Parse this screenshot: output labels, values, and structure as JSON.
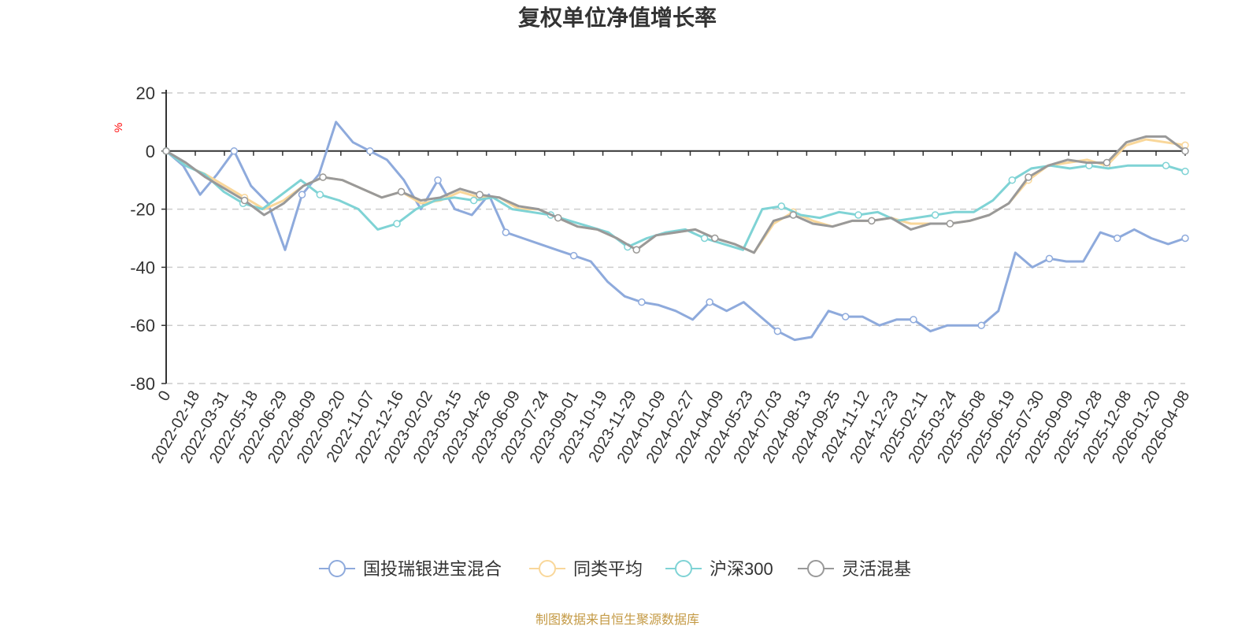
{
  "chart_data": {
    "type": "line",
    "title": "复权单位净值增长率",
    "ylabel": "%",
    "ylim": [
      -80,
      20
    ],
    "yticks": [
      20,
      0,
      -20,
      -40,
      -60,
      -80
    ],
    "x_labels": [
      "0",
      "2022-02-18",
      "2022-03-31",
      "2022-05-18",
      "2022-06-29",
      "2022-08-09",
      "2022-09-20",
      "2022-11-07",
      "2022-12-16",
      "2023-02-02",
      "2023-03-15",
      "2023-04-26",
      "2023-06-09",
      "2023-07-24",
      "2023-09-01",
      "2023-10-19",
      "2023-11-29",
      "2024-01-09",
      "2024-02-27",
      "2024-04-09",
      "2024-05-23",
      "2024-07-03",
      "2024-08-13",
      "2024-09-25",
      "2024-11-12",
      "2024-12-23",
      "2025-02-11",
      "2025-03-24",
      "2025-05-08",
      "2025-06-19",
      "2025-07-30",
      "2025-09-09",
      "2025-10-28",
      "2025-12-08",
      "2026-01-20",
      "2026-04-08"
    ],
    "grid": true,
    "legend_position": "bottom",
    "source": "制图数据来自恒生聚源数据库",
    "series": [
      {
        "name": "国投瑞银进宝混合",
        "color": "#8eaadc",
        "values": [
          0,
          -5,
          -15,
          -8,
          0,
          -12,
          -18,
          -34,
          -15,
          -8,
          10,
          3,
          0,
          -3,
          -10,
          -20,
          -10,
          -20,
          -22,
          -15,
          -28,
          -30,
          -32,
          -34,
          -36,
          -38,
          -45,
          -50,
          -52,
          -53,
          -55,
          -58,
          -52,
          -55,
          -52,
          -57,
          -62,
          -65,
          -64,
          -55,
          -57,
          -57,
          -60,
          -58,
          -58,
          -62,
          -60,
          -60,
          -60,
          -55,
          -35,
          -40,
          -37,
          -38,
          -38,
          -28,
          -30,
          -27,
          -30,
          -32,
          -30
        ]
      },
      {
        "name": "同类平均",
        "color": "#f9d79a",
        "values": [
          0,
          -5,
          -8,
          -12,
          -16,
          -20,
          -17,
          -12,
          -9,
          -10,
          -13,
          -16,
          -14,
          -18,
          -17,
          -14,
          -16,
          -16,
          -20,
          -20,
          -23,
          -26,
          -27,
          -30,
          -34,
          -29,
          -28,
          -27,
          -30,
          -32,
          -35,
          -25,
          -21,
          -24,
          -26,
          -24,
          -24,
          -23,
          -25,
          -25,
          -25,
          -24,
          -22,
          -18,
          -10,
          -5,
          -4,
          -3,
          -5,
          2,
          4,
          3,
          2
        ]
      },
      {
        "name": "沪深300",
        "color": "#7fd3d5",
        "values": [
          0,
          -5,
          -8,
          -14,
          -18,
          -20,
          -15,
          -10,
          -15,
          -17,
          -20,
          -27,
          -25,
          -20,
          -17,
          -16,
          -17,
          -16,
          -20,
          -21,
          -22,
          -24,
          -26,
          -28,
          -33,
          -30,
          -28,
          -27,
          -30,
          -32,
          -34,
          -20,
          -19,
          -22,
          -23,
          -21,
          -22,
          -21,
          -24,
          -23,
          -22,
          -21,
          -21,
          -17,
          -10,
          -6,
          -5,
          -6,
          -5,
          -6,
          -5,
          -5,
          -5,
          -7
        ]
      },
      {
        "name": "灵活混基",
        "color": "#999999",
        "values": [
          0,
          -4,
          -9,
          -13,
          -17,
          -22,
          -18,
          -12,
          -9,
          -10,
          -13,
          -16,
          -14,
          -17,
          -16,
          -13,
          -15,
          -16,
          -19,
          -20,
          -23,
          -26,
          -27,
          -30,
          -34,
          -29,
          -28,
          -27,
          -30,
          -32,
          -35,
          -24,
          -22,
          -25,
          -26,
          -24,
          -24,
          -23,
          -27,
          -25,
          -25,
          -24,
          -22,
          -18,
          -9,
          -5,
          -3,
          -4,
          -4,
          3,
          5,
          5,
          0
        ]
      }
    ]
  }
}
